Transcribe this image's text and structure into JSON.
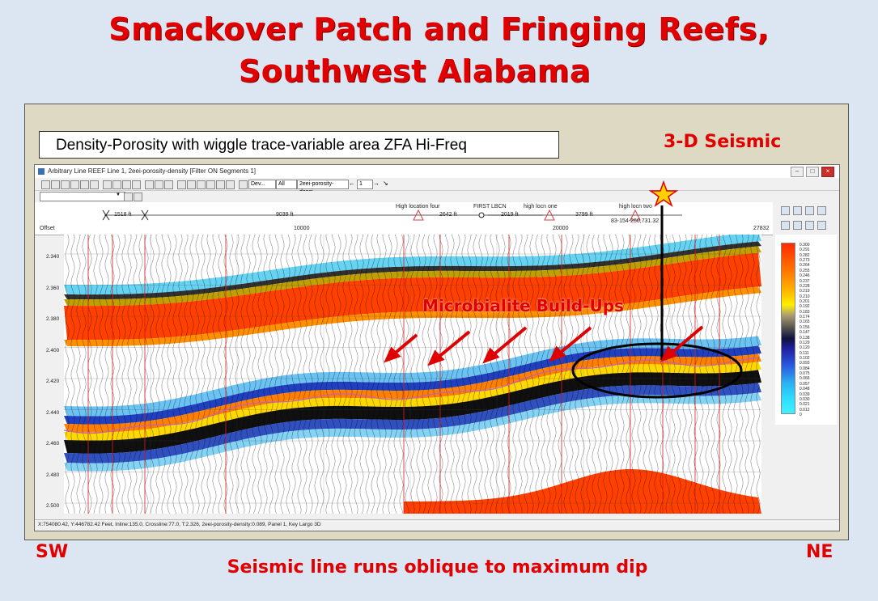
{
  "slide": {
    "title_line1": "Smackover Patch and Fringing Reefs,",
    "title_line2": "Southwest Alabama",
    "box_label": "Density-Porosity with wiggle trace-variable area ZFA Hi-Freq",
    "seismic_label": "3-D Seismic",
    "annotation": "Microbialite Build-Ups",
    "left_end": "SW",
    "right_end": "NE",
    "caption": "Seismic line runs oblique to maximum dip"
  },
  "window": {
    "title": "Arbitrary Line REEF Line 1, 2eei-porosity-density [Filter ON Segments 1]",
    "toolbar": {
      "select_dev": "Dev...",
      "select_all": "All",
      "select_attr": "2eei-porosity-densi",
      "page_value": "1"
    },
    "header": {
      "dist1": "1518 ft",
      "dist2": "9039 ft",
      "well1": "High location four",
      "dist3": "2642 ft",
      "well2": "FIRST LBCN",
      "dist4": "2019 ft",
      "well3": "high locn one",
      "dist5": "3799 ft",
      "well4": "high locn two",
      "well4_id": "83-154-260,731.32"
    },
    "offset_axis": {
      "label": "Offset",
      "ticks": [
        "10000",
        "20000",
        "27832"
      ]
    },
    "time_axis": [
      "2.340",
      "2.360",
      "2.380",
      "2.400",
      "2.420",
      "2.440",
      "2.460",
      "2.480",
      "2.500"
    ],
    "colorbar_labels": [
      "0.300",
      "0.291",
      "0.282",
      "0.273",
      "0.264",
      "0.255",
      "0.246",
      "0.237",
      "0.228",
      "0.219",
      "0.210",
      "0.201",
      "0.192",
      "0.183",
      "0.174",
      "0.165",
      "0.156",
      "0.147",
      "0.138",
      "0.129",
      "0.120",
      "0.111",
      "0.102",
      "0.093",
      "0.084",
      "0.075",
      "0.066",
      "0.057",
      "0.048",
      "0.039",
      "0.030",
      "0.021",
      "0.012",
      "0"
    ],
    "status": "X:754080.42, Y:446782.42 Feet,  Inline:135.0,  Crossline:77.0,  T:2.326,  2eei-porosity-density:0.089,  Panel 1,  Key Largo 3D"
  },
  "colors": {
    "title_red": "#e00000",
    "background": "#dce6f2"
  }
}
